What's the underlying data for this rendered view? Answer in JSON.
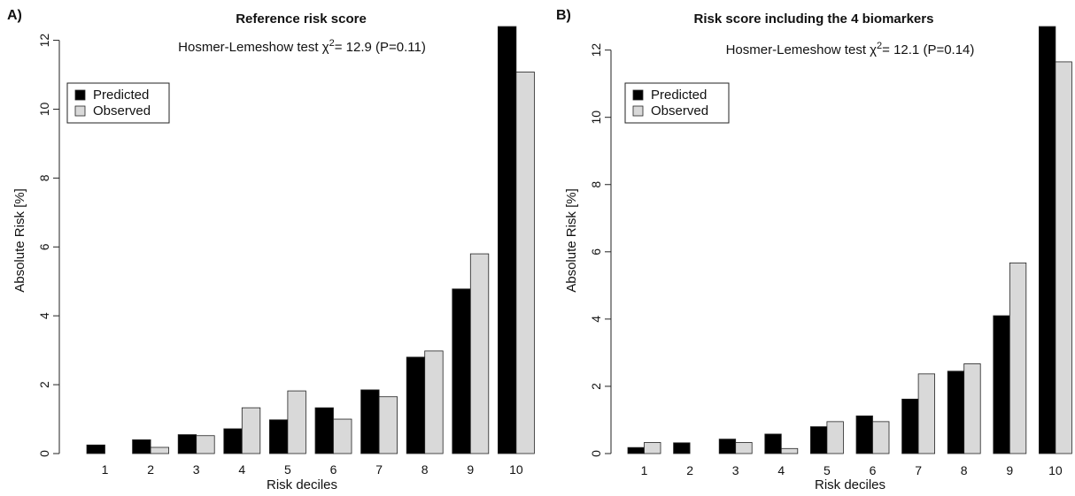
{
  "colors": {
    "predicted": "#000000",
    "observed": "#d9d9d9",
    "stroke": "#222222"
  },
  "chart_data": [
    {
      "type": "bar",
      "panel_label": "A)",
      "title": "Reference risk score",
      "hl_text": {
        "prefix": "Hosmer-Lemeshow test χ",
        "sup": "2",
        "suffix": "= 12.9 (P=0.11)"
      },
      "xlabel": "Risk deciles",
      "ylabel": "Absolute Risk [%]",
      "ylim": [
        0,
        12.4
      ],
      "yticks": [
        0,
        2,
        4,
        6,
        8,
        10,
        12
      ],
      "categories": [
        "1",
        "2",
        "3",
        "4",
        "5",
        "6",
        "7",
        "8",
        "9",
        "10"
      ],
      "series": [
        {
          "name": "Predicted",
          "values": [
            0.25,
            0.4,
            0.55,
            0.72,
            0.98,
            1.33,
            1.85,
            2.8,
            4.78,
            12.4
          ]
        },
        {
          "name": "Observed",
          "values": [
            0.0,
            0.18,
            0.52,
            1.33,
            1.82,
            1.0,
            1.65,
            2.98,
            5.8,
            11.08
          ]
        }
      ],
      "legend_position": "top-left"
    },
    {
      "type": "bar",
      "panel_label": "B)",
      "title": "Risk score including the 4 biomarkers",
      "hl_text": {
        "prefix": "Hosmer-Lemeshow test χ",
        "sup": "2",
        "suffix": "= 12.1 (P=0.14)"
      },
      "xlabel": "Risk deciles",
      "ylabel": "Absolute Risk [%]",
      "ylim": [
        0,
        12.7
      ],
      "yticks": [
        0,
        2,
        4,
        6,
        8,
        10,
        12
      ],
      "categories": [
        "1",
        "2",
        "3",
        "4",
        "5",
        "6",
        "7",
        "8",
        "9",
        "10"
      ],
      "series": [
        {
          "name": "Predicted",
          "values": [
            0.18,
            0.32,
            0.43,
            0.58,
            0.8,
            1.12,
            1.62,
            2.45,
            4.1,
            12.7
          ]
        },
        {
          "name": "Observed",
          "values": [
            0.33,
            0.0,
            0.33,
            0.15,
            0.95,
            0.95,
            2.37,
            2.67,
            5.67,
            11.65
          ]
        }
      ],
      "legend_position": "top-left"
    }
  ]
}
